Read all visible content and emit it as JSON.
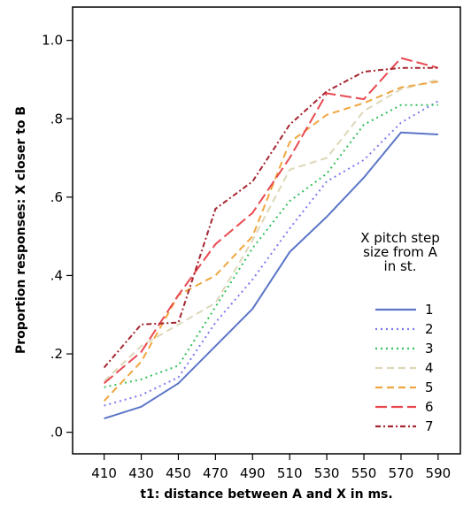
{
  "chart_data": {
    "type": "line",
    "xlabel": "t1: distance between A and X in ms.",
    "ylabel": "Proportion responses: X closer to B",
    "x": [
      410,
      430,
      450,
      470,
      490,
      510,
      530,
      550,
      570,
      590
    ],
    "x_tick_labels": [
      "410",
      "430",
      "450",
      "470",
      "490",
      "510",
      "530",
      "550",
      "570",
      "590"
    ],
    "xlim": [
      393,
      602
    ],
    "y_ticks": [
      0.0,
      0.2,
      0.4,
      0.6,
      0.8,
      1.0
    ],
    "y_tick_labels": [
      ".0",
      ".2",
      ".4",
      ".6",
      ".8",
      "1.0"
    ],
    "ylim": [
      -0.055,
      1.085
    ],
    "grid": false,
    "legend": {
      "title_lines": [
        "X pitch step",
        "size from A",
        "in st."
      ],
      "position": "right"
    },
    "series": [
      {
        "name": "1",
        "color": "#5b75c7",
        "dash": "solid",
        "values": [
          0.035,
          0.065,
          0.125,
          0.22,
          0.315,
          0.46,
          0.55,
          0.65,
          0.765,
          0.76
        ]
      },
      {
        "name": "2",
        "color": "#7b79ee",
        "dash": "dotted",
        "values": [
          0.068,
          0.095,
          0.14,
          0.28,
          0.39,
          0.52,
          0.64,
          0.695,
          0.79,
          0.845
        ]
      },
      {
        "name": "3",
        "color": "#33c05a",
        "dash": "dotted",
        "values": [
          0.115,
          0.135,
          0.17,
          0.32,
          0.47,
          0.59,
          0.66,
          0.785,
          0.835,
          0.835
        ]
      },
      {
        "name": "4",
        "color": "#ddd7b8",
        "dash": "dashed",
        "values": [
          0.13,
          0.22,
          0.275,
          0.33,
          0.49,
          0.67,
          0.7,
          0.82,
          0.875,
          0.9
        ]
      },
      {
        "name": "5",
        "color": "#f0a640",
        "dash": "dashed",
        "values": [
          0.08,
          0.18,
          0.35,
          0.4,
          0.5,
          0.74,
          0.81,
          0.84,
          0.88,
          0.895
        ]
      },
      {
        "name": "6",
        "color": "#e84a50",
        "dash": "longdash",
        "values": [
          0.125,
          0.205,
          0.35,
          0.48,
          0.56,
          0.7,
          0.865,
          0.85,
          0.955,
          0.93
        ]
      },
      {
        "name": "7",
        "color": "#a52530",
        "dash": "dashdot",
        "values": [
          0.165,
          0.275,
          0.28,
          0.57,
          0.64,
          0.785,
          0.87,
          0.92,
          0.93,
          0.93
        ]
      }
    ]
  }
}
